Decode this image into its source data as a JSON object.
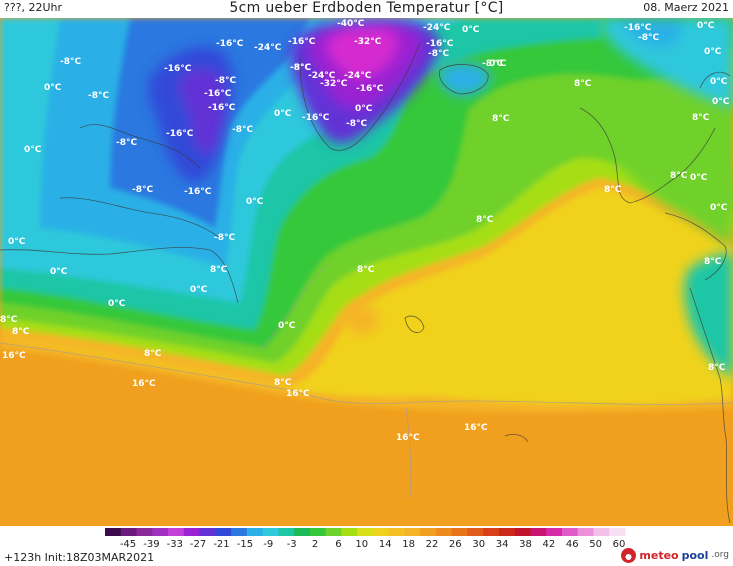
{
  "header": {
    "run_info": "???, 22Uhr",
    "title": "5cm ueber Erdboden Temperatur [°C]",
    "date": "08. Maerz 2021"
  },
  "map": {
    "palette": {
      "sea_warm": "#f0a01e",
      "sea_warm_mid": "#f5b428",
      "yellow": "#f0d21e",
      "yellow_green": "#a6de14",
      "light_green": "#6fd12b",
      "green": "#34c83a",
      "green_dark": "#1fba58",
      "teal": "#1ec6a6",
      "cyan": "#2fc8dc",
      "light_blue": "#2ab0e6",
      "blue": "#2c78e0",
      "dark_blue": "#3148d8",
      "indigo": "#6232d6",
      "violet": "#9a22d2",
      "magenta": "#d52ad0",
      "pink": "#f07bd9"
    },
    "labels": [
      "-40°C",
      "-24°C",
      "0°C",
      "-16°C",
      "-8°C",
      "0°C",
      "-16°C",
      "-24°C",
      "-16°C",
      "-32°C",
      "-16°C",
      "0°C",
      "-8°C",
      "-8°C",
      "-8°C",
      "0°C",
      "-8°C",
      "-16°C",
      "-8°C",
      "-24°C",
      "-24°C",
      "-8°C",
      "0°C",
      "0°C",
      "-8°C",
      "-16°C",
      "-32°C",
      "-16°C",
      "8°C",
      "0°C",
      "-16°C",
      "-8°C",
      "0°C",
      "-16°C",
      "-8°C",
      "0°C",
      "8°C",
      "-8°C",
      "-16°C",
      "8°C",
      "0°C",
      "-8°C",
      "-16°C",
      "0°C",
      "8°C",
      "8°C",
      "0°C",
      "-8°C",
      "8°C",
      "0°C",
      "0°C",
      "8°C",
      "8°C",
      "0°C",
      "8°C",
      "0°C",
      "8°C",
      "0°C",
      "0°C",
      "8°C",
      "16°C",
      "8°C",
      "8°C",
      "16°C",
      "16°C",
      "16°C",
      "16°C",
      "8°C"
    ]
  },
  "legend": {
    "ticks": [
      "-45",
      "-39",
      "-33",
      "-27",
      "-21",
      "-15",
      "-9",
      "-3",
      "2",
      "6",
      "10",
      "14",
      "18",
      "22",
      "26",
      "30",
      "34",
      "38",
      "42",
      "46",
      "50",
      "60"
    ],
    "colors": [
      "#3a0a4a",
      "#6a1a7a",
      "#8a2a9a",
      "#a030c0",
      "#c040d8",
      "#9a22d2",
      "#6232d6",
      "#3148d8",
      "#2c78e0",
      "#2ab0e6",
      "#2fc8dc",
      "#1ec6a6",
      "#1fba58",
      "#34c83a",
      "#6fd12b",
      "#a6de14",
      "#d8e01a",
      "#f0d21e",
      "#f5c023",
      "#f5b428",
      "#f0a01e",
      "#ec8a1c",
      "#e8741a",
      "#e05a1a",
      "#d8401a",
      "#cc281a",
      "#c0142a",
      "#c81470",
      "#d62aa8",
      "#e05ac8",
      "#ec90dc",
      "#f4c0ea",
      "#f8e0f4"
    ]
  },
  "footer": {
    "run": "+123h  Init:18Z03MAR2021",
    "logo_main": "meteo",
    "logo_accent": "pool",
    "logo_tld": ".org"
  }
}
